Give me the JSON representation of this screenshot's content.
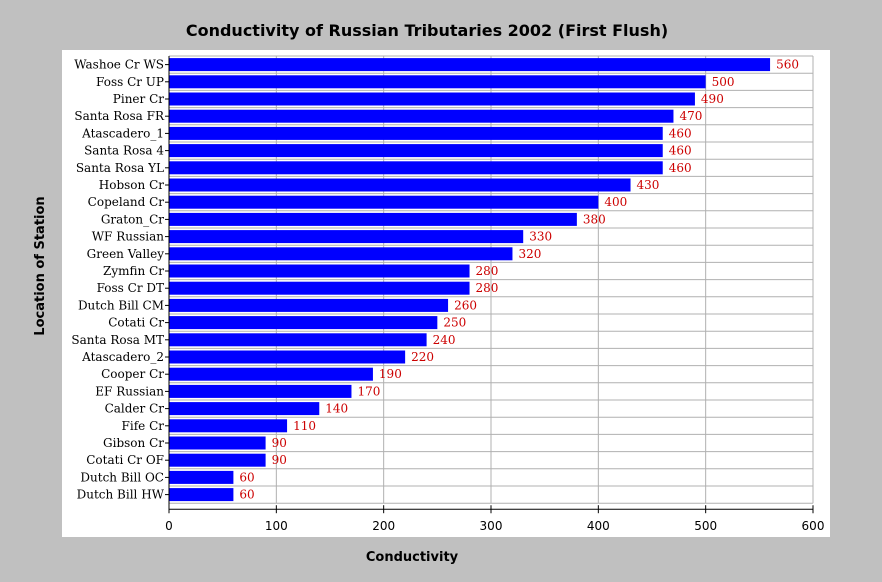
{
  "chart_data": {
    "type": "bar",
    "orientation": "horizontal",
    "title": "Conductivity of Russian Tributaries 2002 (First Flush)",
    "xlabel": "Conductivity",
    "ylabel": "Location of Station",
    "xlim": [
      0,
      600
    ],
    "xticks": [
      "0",
      "100",
      "200",
      "300",
      "400",
      "500",
      "600"
    ],
    "grid": true,
    "bar_color": "#0000ff",
    "value_label_color": "#cc0000",
    "categories": [
      "Washoe Cr WS",
      "Foss Cr UP",
      "Piner Cr",
      "Santa Rosa FR",
      "Atascadero_1",
      "Santa Rosa 4",
      "Santa Rosa YL",
      "Hobson Cr",
      "Copeland Cr",
      "Graton_Cr",
      "WF Russian",
      "Green Valley",
      "Zymfin Cr",
      "Foss Cr DT",
      "Dutch Bill CM",
      "Cotati Cr",
      "Santa Rosa MT",
      "Atascadero_2",
      "Cooper Cr",
      "EF Russian",
      "Calder Cr",
      "Fife Cr",
      "Gibson Cr",
      "Cotati Cr OF",
      "Dutch Bill OC",
      "Dutch Bill HW"
    ],
    "values": [
      560,
      500,
      490,
      470,
      460,
      460,
      460,
      430,
      400,
      380,
      330,
      320,
      280,
      280,
      260,
      250,
      240,
      220,
      190,
      170,
      140,
      110,
      90,
      90,
      60,
      60
    ]
  }
}
